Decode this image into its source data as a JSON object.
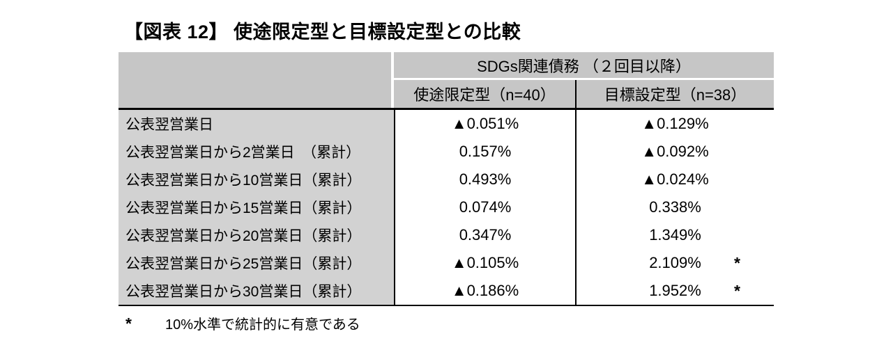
{
  "title": "【図表 12】 使途限定型と目標設定型との比較",
  "table": {
    "header_group": "SDGs関連債務 （２回目以降）",
    "columns": [
      "使途限定型（n=40）",
      "目標設定型（n=38）"
    ],
    "rows": [
      {
        "label": "公表翌営業日",
        "col1": "▲0.051%",
        "col2": "▲0.129%",
        "sig": ""
      },
      {
        "label": "公表翌営業日から2営業日　（累計）",
        "col1": "0.157%",
        "col2": "▲0.092%",
        "sig": ""
      },
      {
        "label": "公表翌営業日から10営業日（累計）",
        "col1": "0.493%",
        "col2": "▲0.024%",
        "sig": ""
      },
      {
        "label": "公表翌営業日から15営業日（累計）",
        "col1": "0.074%",
        "col2": "0.338%",
        "sig": ""
      },
      {
        "label": "公表翌営業日から20営業日（累計）",
        "col1": "0.347%",
        "col2": "1.349%",
        "sig": ""
      },
      {
        "label": "公表翌営業日から25営業日（累計）",
        "col1": "▲0.105%",
        "col2": "2.109%",
        "sig": "*"
      },
      {
        "label": "公表翌営業日から30営業日（累計）",
        "col1": "▲0.186%",
        "col2": "1.952%",
        "sig": "*"
      }
    ]
  },
  "footnote": {
    "marker": "*",
    "text": "10%水準で統計的に有意である"
  },
  "colors": {
    "header_fill": "#c6c6c6",
    "label_fill": "#d2d2d2",
    "border": "#000000",
    "background": "#ffffff"
  },
  "chart_data": {
    "type": "table",
    "title": "【図表 12】 使途限定型と目標設定型との比較",
    "group_header": "SDGs関連債務 （２回目以降）",
    "columns": [
      "使途限定型（n=40）",
      "目標設定型（n=38）"
    ],
    "row_labels": [
      "公表翌営業日",
      "公表翌営業日から2営業日　（累計）",
      "公表翌営業日から10営業日（累計）",
      "公表翌営業日から15営業日（累計）",
      "公表翌営業日から20営業日（累計）",
      "公表翌営業日から25営業日（累計）",
      "公表翌営業日から30営業日（累計）"
    ],
    "series": [
      {
        "name": "使途限定型（n=40）",
        "values_pct": [
          -0.051,
          0.157,
          0.493,
          0.074,
          0.347,
          -0.105,
          -0.186
        ]
      },
      {
        "name": "目標設定型（n=38）",
        "values_pct": [
          -0.129,
          -0.092,
          -0.024,
          0.338,
          1.349,
          2.109,
          1.952
        ],
        "significant_at_10pct": [
          false,
          false,
          false,
          false,
          false,
          true,
          true
        ]
      }
    ],
    "footnote": "* 10%水準で統計的に有意である"
  }
}
